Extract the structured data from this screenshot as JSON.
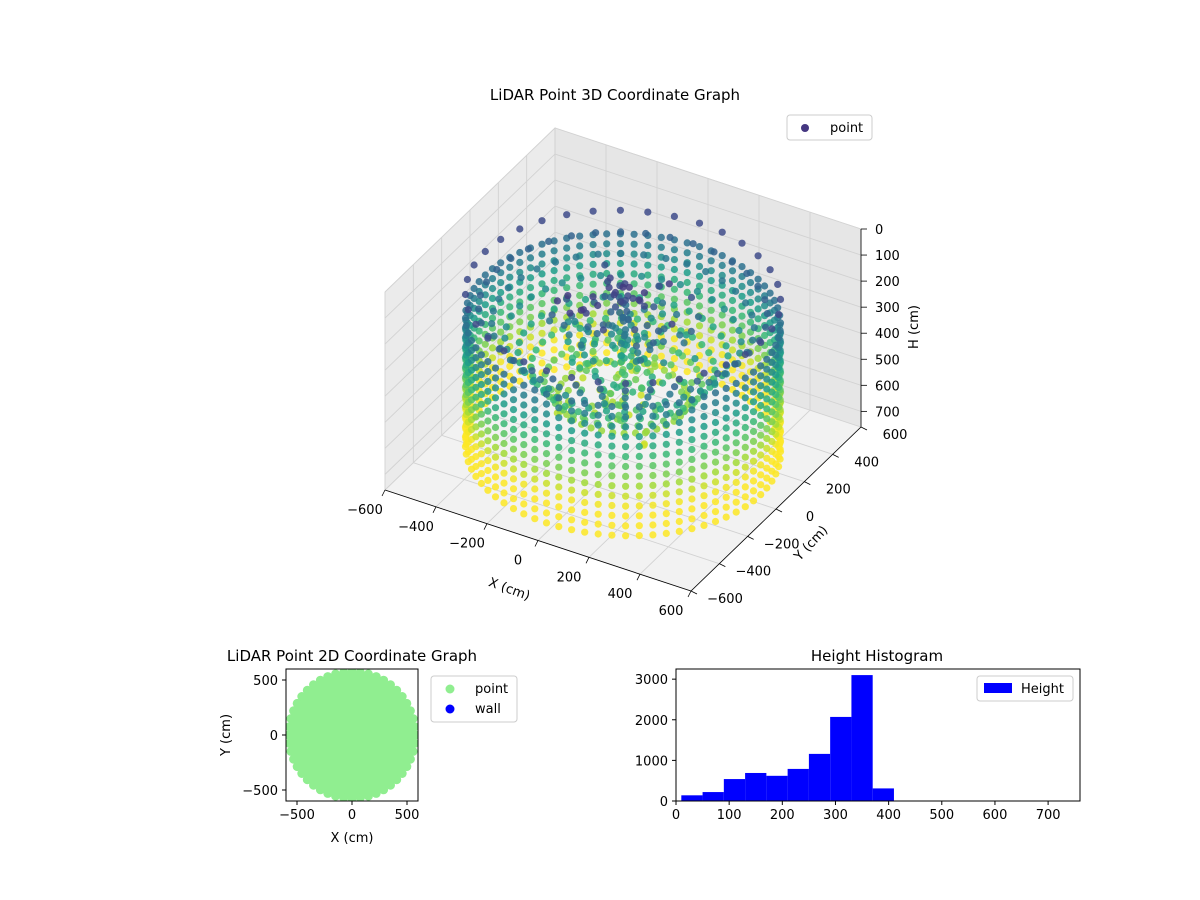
{
  "chart_data": [
    {
      "type": "scatter",
      "title": "LiDAR Point 3D Coordinate Graph",
      "xlabel": "X (cm)",
      "ylabel": "Y (cm)",
      "zlabel": "H (cm)",
      "xlim": [
        -600,
        600
      ],
      "ylim": [
        -600,
        600
      ],
      "zlim": [
        0,
        760
      ],
      "z_inverted": true,
      "x_ticks": [
        -600,
        -400,
        -200,
        0,
        200,
        400,
        600
      ],
      "y_ticks": [
        -600,
        -400,
        -200,
        0,
        200,
        400,
        600
      ],
      "z_ticks": [
        0,
        100,
        200,
        300,
        400,
        500,
        600,
        700
      ],
      "legend": {
        "position": "top-right",
        "entries": [
          "point"
        ]
      },
      "colormap": "viridis",
      "grid": true
    },
    {
      "type": "scatter",
      "title": "LiDAR Point 2D Coordinate Graph",
      "xlabel": "X (cm)",
      "ylabel": "Y (cm)",
      "xlim": [
        -600,
        600
      ],
      "ylim": [
        -600,
        600
      ],
      "x_ticks": [
        -500,
        0,
        500
      ],
      "y_ticks": [
        -500,
        0,
        500
      ],
      "series": [
        {
          "name": "point",
          "color": "#90ee90",
          "radius": 575
        },
        {
          "name": "wall",
          "color": "#0000ff"
        }
      ],
      "legend": {
        "position": "outside-right",
        "entries": [
          "point",
          "wall"
        ]
      }
    },
    {
      "type": "bar",
      "title": "Height Histogram",
      "xlim": [
        0,
        760
      ],
      "ylim": [
        0,
        3250
      ],
      "x_ticks": [
        0,
        100,
        200,
        300,
        400,
        500,
        600,
        700
      ],
      "y_ticks": [
        0,
        1000,
        2000,
        3000
      ],
      "series": [
        {
          "name": "Height",
          "color": "#0000ff",
          "bins": [
            10,
            50,
            90,
            130,
            170,
            210,
            250,
            290,
            330,
            370,
            410
          ],
          "values": [
            140,
            220,
            540,
            690,
            620,
            790,
            1160,
            2070,
            3100,
            310
          ]
        }
      ],
      "legend": {
        "position": "top-right",
        "entries": [
          "Height"
        ]
      }
    }
  ]
}
